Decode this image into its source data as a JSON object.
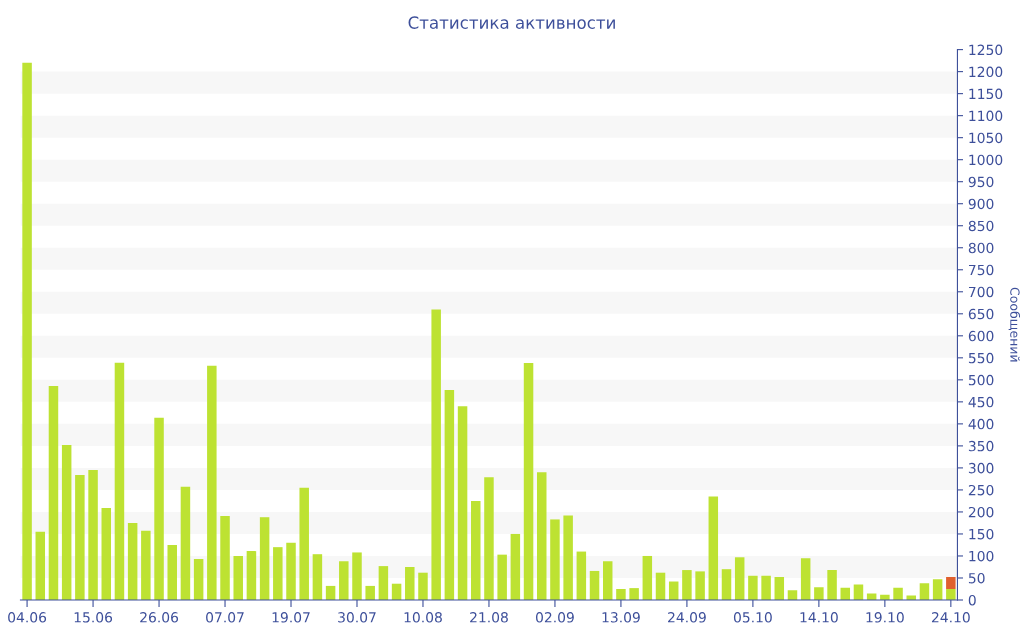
{
  "chart_data": {
    "type": "bar",
    "title": "Статистика активности",
    "ylabel": "Сообщений",
    "stacked": true,
    "categories": [
      "04.06",
      null,
      null,
      null,
      null,
      "15.06",
      null,
      null,
      null,
      null,
      "26.06",
      null,
      null,
      null,
      null,
      "07.07",
      null,
      null,
      null,
      null,
      "19.07",
      null,
      null,
      null,
      null,
      "30.07",
      null,
      null,
      null,
      null,
      "10.08",
      null,
      null,
      null,
      null,
      "21.08",
      null,
      null,
      null,
      null,
      "02.09",
      null,
      null,
      null,
      null,
      "13.09",
      null,
      null,
      null,
      null,
      "24.09",
      null,
      null,
      null,
      null,
      "05.10",
      null,
      null,
      null,
      null,
      "14.10",
      null,
      null,
      null,
      null,
      "19.10",
      null,
      null,
      null,
      null,
      "24.10"
    ],
    "series": [
      {
        "color": "#bde232",
        "values": [
          1220,
          155,
          486,
          352,
          284,
          295,
          209,
          539,
          175,
          157,
          414,
          125,
          257,
          93,
          532,
          191,
          100,
          111,
          188,
          120,
          130,
          255,
          104,
          32,
          88,
          108,
          32,
          77,
          37,
          75,
          62,
          660,
          477,
          440,
          225,
          279,
          103,
          150,
          538,
          290,
          183,
          192,
          110,
          66,
          88,
          25,
          27,
          100,
          62,
          42,
          68,
          65,
          235,
          70,
          97,
          55,
          55,
          52,
          22,
          95,
          29,
          68,
          28,
          35,
          15,
          12,
          28,
          10,
          38,
          47,
          25
        ]
      },
      {
        "color": "#e0602e",
        "values": [
          null,
          null,
          null,
          null,
          null,
          null,
          null,
          null,
          null,
          null,
          null,
          null,
          null,
          null,
          null,
          null,
          null,
          null,
          null,
          null,
          null,
          null,
          null,
          null,
          null,
          null,
          null,
          null,
          null,
          null,
          null,
          null,
          null,
          null,
          null,
          null,
          null,
          null,
          null,
          null,
          null,
          null,
          null,
          null,
          null,
          null,
          null,
          null,
          null,
          null,
          null,
          null,
          null,
          null,
          null,
          null,
          null,
          null,
          null,
          null,
          null,
          null,
          null,
          null,
          null,
          null,
          null,
          null,
          null,
          null,
          27
        ]
      }
    ],
    "ylim": [
      0,
      1250
    ],
    "yticks": [
      0,
      50,
      100,
      150,
      200,
      250,
      300,
      350,
      400,
      450,
      500,
      550,
      600,
      650,
      700,
      750,
      800,
      850,
      900,
      950,
      1000,
      1050,
      1100,
      1150,
      1200,
      1250
    ],
    "bands": [
      {
        "axis": "y",
        "from": 50,
        "to": 100,
        "color": "#f7f7f7"
      },
      {
        "axis": "y",
        "from": 150,
        "to": 200,
        "color": "#f7f7f7"
      },
      {
        "axis": "y",
        "from": 250,
        "to": 300,
        "color": "#f7f7f7"
      },
      {
        "axis": "y",
        "from": 350,
        "to": 400,
        "color": "#f7f7f7"
      },
      {
        "axis": "y",
        "from": 450,
        "to": 500,
        "color": "#f7f7f7"
      },
      {
        "axis": "y",
        "from": 550,
        "to": 600,
        "color": "#f7f7f7"
      },
      {
        "axis": "y",
        "from": 650,
        "to": 700,
        "color": "#f7f7f7"
      },
      {
        "axis": "y",
        "from": 750,
        "to": 800,
        "color": "#f7f7f7"
      },
      {
        "axis": "y",
        "from": 850,
        "to": 900,
        "color": "#f7f7f7"
      },
      {
        "axis": "y",
        "from": 950,
        "to": 1000,
        "color": "#f7f7f7"
      },
      {
        "axis": "y",
        "from": 1050,
        "to": 1100,
        "color": "#f7f7f7"
      },
      {
        "axis": "y",
        "from": 1150,
        "to": 1200,
        "color": "#f7f7f7"
      }
    ],
    "grid": false,
    "legend": false
  }
}
